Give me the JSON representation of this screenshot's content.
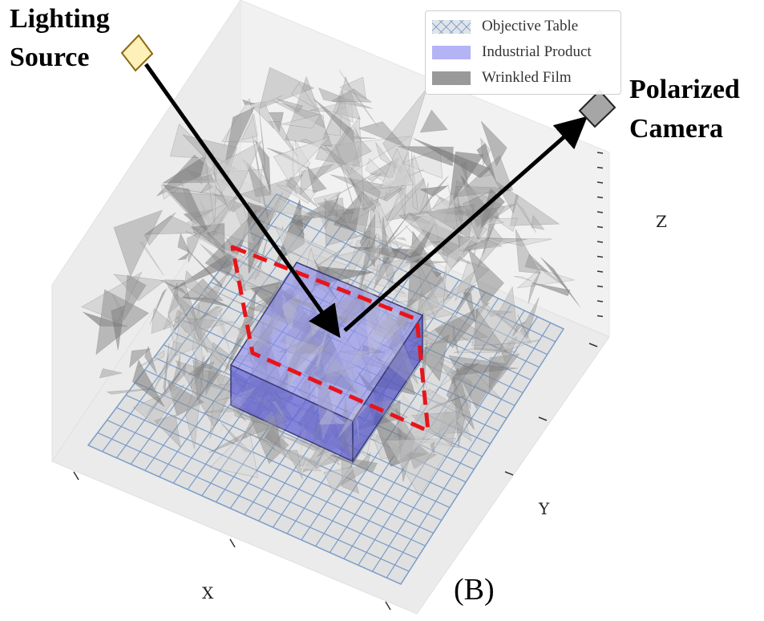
{
  "labels": {
    "source_line1": "Lighting",
    "source_line2": "Source",
    "camera_line1": "Polarized",
    "camera_line2": "Camera",
    "axis_x": "X",
    "axis_y": "Y",
    "axis_z": "Z",
    "panel": "(B)"
  },
  "legend": [
    {
      "label": "Objective Table",
      "swatch": "hatched",
      "color": "#dfe4ea"
    },
    {
      "label": "Industrial Product",
      "swatch": "solid",
      "color": "#b3b3f5"
    },
    {
      "label": "Wrinkled Film",
      "swatch": "solid",
      "color": "#999999"
    }
  ],
  "colors": {
    "grid_line": "#7a9cc8",
    "table_fill": "#dedede",
    "product_fill": "#7b7be6",
    "film_fill": "#9a9a9a",
    "dashed_outline": "#e8141b",
    "source_fill": "#fdf0b8",
    "camera_fill": "#9a9a9a"
  }
}
